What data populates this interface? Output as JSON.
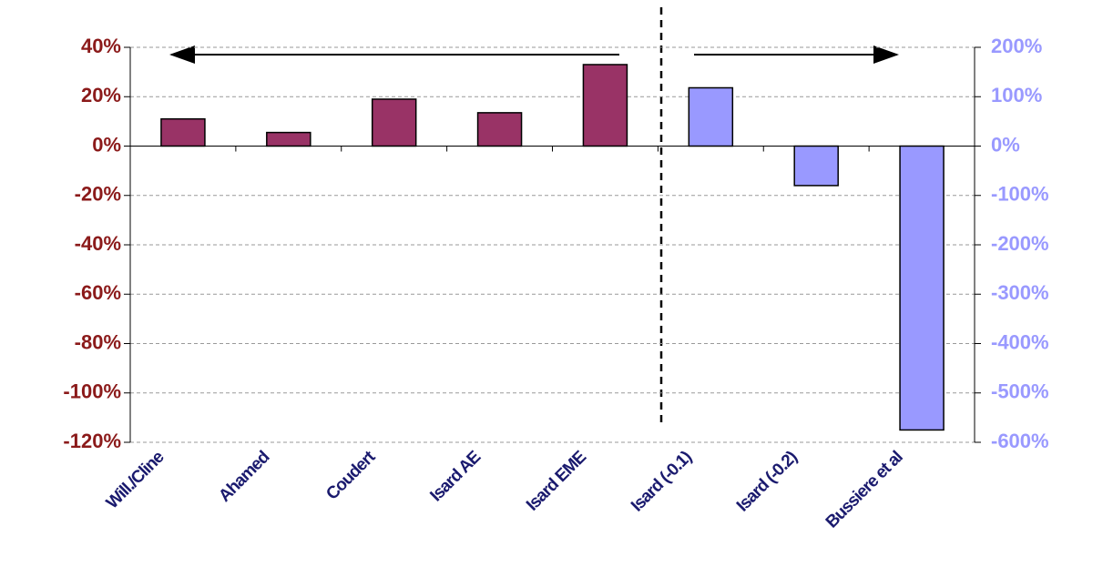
{
  "chart_data": {
    "type": "bar",
    "categories": [
      "Will./Cline",
      "Ahamed",
      "Coudert",
      "Isard AE",
      "Isard EME",
      "Isard (-0.1)",
      "Isard (-0.2)",
      "Bussiere et al"
    ],
    "series": [
      {
        "color": "#993366",
        "values": [
          11,
          5.5,
          19,
          13.5,
          33,
          null,
          null,
          null
        ]
      },
      {
        "color": "#9999ff",
        "axis": "y2",
        "values": [
          null,
          null,
          null,
          null,
          null,
          118,
          -80,
          -575
        ]
      }
    ],
    "ylim": [
      -120,
      40
    ],
    "yticks": [
      {
        "value": -120,
        "label": "-120%"
      },
      {
        "value": -100,
        "label": "-100%"
      },
      {
        "value": -80,
        "label": "-80%"
      },
      {
        "value": -60,
        "label": "-60%"
      },
      {
        "value": -40,
        "label": "-40%"
      },
      {
        "value": -20,
        "label": "-20%"
      },
      {
        "value": 0,
        "label": "0%"
      },
      {
        "value": 20,
        "label": "20%"
      },
      {
        "value": 40,
        "label": "40%"
      }
    ],
    "y2lim": [
      -600,
      200
    ],
    "y2ticks": [
      {
        "value": -600,
        "label": "-600%"
      },
      {
        "value": -500,
        "label": "-500%"
      },
      {
        "value": -400,
        "label": "-400%"
      },
      {
        "value": -300,
        "label": "-300%"
      },
      {
        "value": -200,
        "label": "-200%"
      },
      {
        "value": -100,
        "label": "-100%"
      },
      {
        "value": 0,
        "label": "0%"
      },
      {
        "value": 100,
        "label": "100%"
      },
      {
        "value": 200,
        "label": "200%"
      }
    ],
    "grid": true
  }
}
